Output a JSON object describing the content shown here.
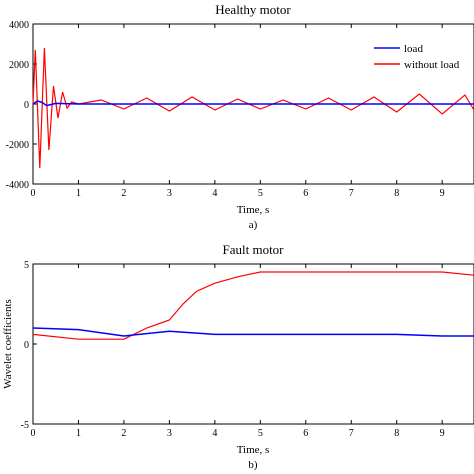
{
  "chart_data": [
    {
      "type": "line",
      "title": "Healthy motor",
      "xlabel": "Time, s",
      "ylabel": "",
      "caption": "a)",
      "xlim": [
        0,
        9.7
      ],
      "ylim": [
        -4000,
        4000
      ],
      "xticks": [
        0,
        1,
        2,
        3,
        4,
        5,
        6,
        7,
        8,
        9
      ],
      "yticks": [
        -4000,
        -2000,
        0,
        2000,
        4000
      ],
      "legend_position": "top-right",
      "series": [
        {
          "name": "load",
          "color": "#0000ff",
          "x": [
            0,
            0.1,
            0.2,
            0.3,
            0.5,
            1,
            2,
            3,
            4,
            5,
            6,
            7,
            8,
            9,
            9.7
          ],
          "y": [
            0,
            150,
            80,
            -80,
            30,
            0,
            0,
            0,
            0,
            0,
            0,
            0,
            0,
            0,
            0
          ]
        },
        {
          "name": "without load",
          "color": "#ff0000",
          "x": [
            0,
            0.05,
            0.15,
            0.25,
            0.35,
            0.45,
            0.55,
            0.65,
            0.75,
            0.85,
            1,
            1.5,
            2,
            2.5,
            3,
            3.5,
            4,
            4.5,
            5,
            5.5,
            6,
            6.5,
            7,
            7.5,
            8,
            8.5,
            9,
            9.5,
            9.7
          ],
          "y": [
            0,
            2700,
            -3200,
            2800,
            -2300,
            900,
            -700,
            600,
            -200,
            100,
            0,
            200,
            -250,
            300,
            -350,
            350,
            -300,
            250,
            -250,
            200,
            -250,
            300,
            -300,
            350,
            -400,
            500,
            -500,
            450,
            -300
          ]
        }
      ]
    },
    {
      "type": "line",
      "title": "Fault motor",
      "xlabel": "Time, s",
      "ylabel": "Wavelet coefficients",
      "caption": "b)",
      "xlim": [
        0,
        9.7
      ],
      "ylim": [
        -5,
        5
      ],
      "xticks": [
        0,
        1,
        2,
        3,
        4,
        5,
        6,
        7,
        8,
        9
      ],
      "yticks": [
        -5,
        0,
        5
      ],
      "series": [
        {
          "name": "load",
          "color": "#0000ff",
          "x": [
            0,
            1,
            2,
            3,
            4,
            5,
            6,
            7,
            8,
            9,
            9.7
          ],
          "y": [
            1.0,
            0.9,
            0.5,
            0.8,
            0.6,
            0.6,
            0.6,
            0.6,
            0.6,
            0.5,
            0.5
          ]
        },
        {
          "name": "without load",
          "color": "#ff0000",
          "x": [
            0,
            1,
            2,
            2.5,
            3,
            3.3,
            3.6,
            4,
            4.5,
            5,
            6,
            7,
            8,
            9,
            9.7
          ],
          "y": [
            0.6,
            0.3,
            0.3,
            1.0,
            1.5,
            2.5,
            3.3,
            3.8,
            4.2,
            4.5,
            4.5,
            4.5,
            4.5,
            4.5,
            4.3
          ]
        }
      ]
    }
  ]
}
